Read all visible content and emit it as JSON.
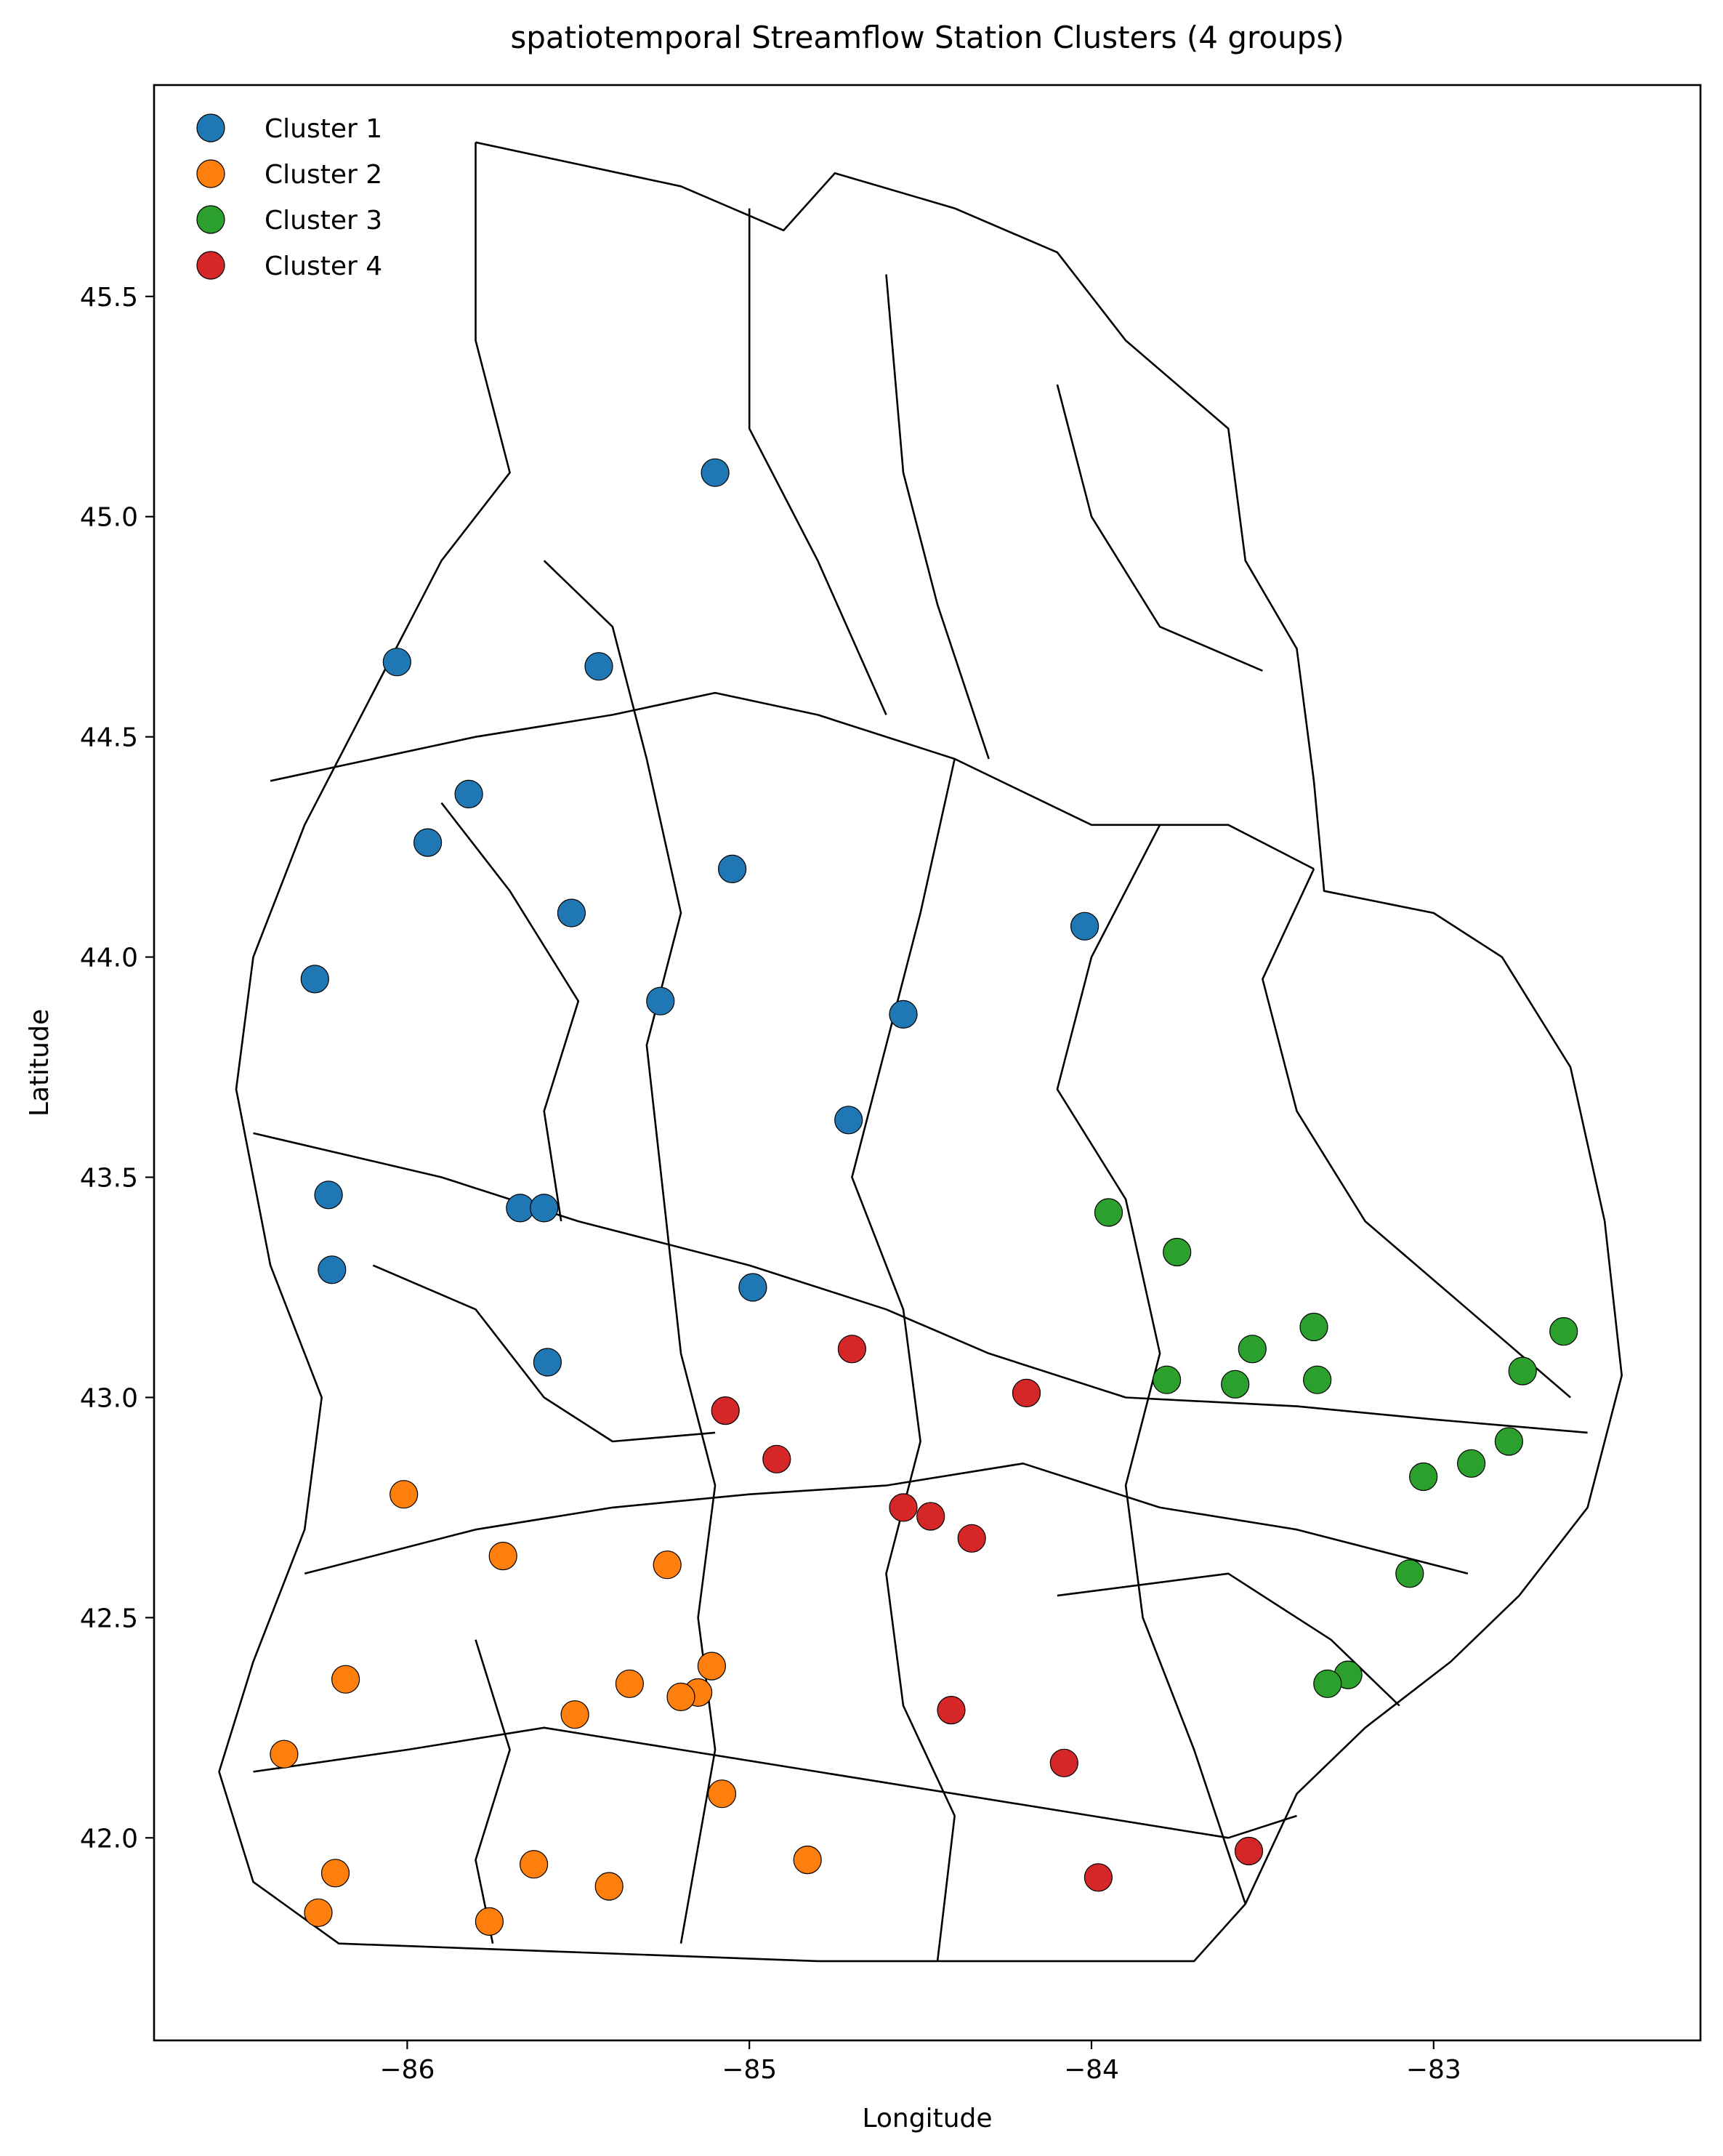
{
  "chart_data": {
    "type": "scatter",
    "title": "spatiotemporal Streamflow Station Clusters (4 groups)",
    "xlabel": "Longitude",
    "ylabel": "Latitude",
    "xlim": [
      -86.74,
      -82.22
    ],
    "ylim": [
      41.54,
      45.98
    ],
    "xticks": [
      -86,
      -85,
      -84,
      -83
    ],
    "xtick_labels": [
      "−86",
      "−85",
      "−84",
      "−83"
    ],
    "yticks": [
      42.0,
      42.5,
      43.0,
      43.5,
      44.0,
      44.5,
      45.0,
      45.5
    ],
    "ytick_labels": [
      "42.0",
      "42.5",
      "43.0",
      "43.5",
      "44.0",
      "44.5",
      "45.0",
      "45.5"
    ],
    "grid": false,
    "legend_position": "top-left",
    "series": [
      {
        "name": "Cluster 1",
        "color": "#1f77b4",
        "points": [
          [
            -85.1,
            45.1
          ],
          [
            -86.03,
            44.67
          ],
          [
            -85.44,
            44.66
          ],
          [
            -85.82,
            44.37
          ],
          [
            -85.94,
            44.26
          ],
          [
            -85.05,
            44.2
          ],
          [
            -85.52,
            44.1
          ],
          [
            -84.02,
            44.07
          ],
          [
            -86.27,
            43.95
          ],
          [
            -85.26,
            43.9
          ],
          [
            -84.55,
            43.87
          ],
          [
            -84.71,
            43.63
          ],
          [
            -86.23,
            43.46
          ],
          [
            -85.67,
            43.43
          ],
          [
            -85.6,
            43.43
          ],
          [
            -86.22,
            43.29
          ],
          [
            -84.99,
            43.25
          ],
          [
            -85.59,
            43.08
          ]
        ]
      },
      {
        "name": "Cluster 2",
        "color": "#ff7f0e",
        "points": [
          [
            -86.01,
            42.78
          ],
          [
            -85.72,
            42.64
          ],
          [
            -85.24,
            42.62
          ],
          [
            -86.18,
            42.36
          ],
          [
            -85.35,
            42.35
          ],
          [
            -85.11,
            42.39
          ],
          [
            -85.15,
            42.33
          ],
          [
            -85.2,
            42.32
          ],
          [
            -85.51,
            42.28
          ],
          [
            -86.36,
            42.19
          ],
          [
            -85.08,
            42.1
          ],
          [
            -84.83,
            41.95
          ],
          [
            -86.21,
            41.92
          ],
          [
            -85.63,
            41.94
          ],
          [
            -85.41,
            41.89
          ],
          [
            -86.26,
            41.83
          ],
          [
            -85.76,
            41.81
          ]
        ]
      },
      {
        "name": "Cluster 3",
        "color": "#2ca02c",
        "points": [
          [
            -83.95,
            43.42
          ],
          [
            -83.75,
            43.33
          ],
          [
            -83.35,
            43.16
          ],
          [
            -83.53,
            43.11
          ],
          [
            -83.78,
            43.04
          ],
          [
            -83.58,
            43.03
          ],
          [
            -83.34,
            43.04
          ],
          [
            -82.62,
            43.15
          ],
          [
            -82.74,
            43.06
          ],
          [
            -82.78,
            42.9
          ],
          [
            -82.89,
            42.85
          ],
          [
            -83.03,
            42.82
          ],
          [
            -83.07,
            42.6
          ],
          [
            -83.25,
            42.37
          ],
          [
            -83.31,
            42.35
          ]
        ]
      },
      {
        "name": "Cluster 4",
        "color": "#d62728",
        "points": [
          [
            -84.7,
            43.11
          ],
          [
            -85.07,
            42.97
          ],
          [
            -84.19,
            43.01
          ],
          [
            -84.92,
            42.86
          ],
          [
            -84.55,
            42.75
          ],
          [
            -84.47,
            42.73
          ],
          [
            -84.35,
            42.68
          ],
          [
            -84.41,
            42.29
          ],
          [
            -84.08,
            42.17
          ],
          [
            -83.98,
            41.91
          ],
          [
            -83.54,
            41.97
          ]
        ]
      }
    ],
    "basin_outlines": [
      [
        [
          -85.8,
          45.85
        ],
        [
          -85.2,
          45.75
        ],
        [
          -84.9,
          45.65
        ],
        [
          -84.75,
          45.78
        ],
        [
          -84.4,
          45.7
        ],
        [
          -84.1,
          45.6
        ],
        [
          -83.9,
          45.4
        ],
        [
          -83.6,
          45.2
        ],
        [
          -83.55,
          44.9
        ],
        [
          -83.4,
          44.7
        ],
        [
          -83.35,
          44.4
        ],
        [
          -83.32,
          44.15
        ],
        [
          -83.0,
          44.1
        ],
        [
          -82.8,
          44.0
        ],
        [
          -82.6,
          43.75
        ],
        [
          -82.5,
          43.4
        ],
        [
          -82.45,
          43.05
        ],
        [
          -82.55,
          42.75
        ],
        [
          -82.75,
          42.55
        ],
        [
          -82.95,
          42.4
        ],
        [
          -83.2,
          42.25
        ],
        [
          -83.4,
          42.1
        ],
        [
          -83.55,
          41.85
        ],
        [
          -83.7,
          41.72
        ],
        [
          -84.8,
          41.72
        ],
        [
          -86.2,
          41.76
        ],
        [
          -86.45,
          41.9
        ],
        [
          -86.55,
          42.15
        ],
        [
          -86.45,
          42.4
        ],
        [
          -86.3,
          42.7
        ],
        [
          -86.25,
          43.0
        ],
        [
          -86.4,
          43.3
        ],
        [
          -86.5,
          43.7
        ],
        [
          -86.45,
          44.0
        ],
        [
          -86.3,
          44.3
        ],
        [
          -86.1,
          44.6
        ],
        [
          -85.9,
          44.9
        ],
        [
          -85.7,
          45.1
        ],
        [
          -85.8,
          45.4
        ],
        [
          -85.8,
          45.85
        ]
      ],
      [
        [
          -86.4,
          44.4
        ],
        [
          -85.8,
          44.5
        ],
        [
          -85.4,
          44.55
        ],
        [
          -85.1,
          44.6
        ],
        [
          -84.8,
          44.55
        ],
        [
          -84.4,
          44.45
        ],
        [
          -84.0,
          44.3
        ],
        [
          -83.6,
          44.3
        ],
        [
          -83.35,
          44.2
        ]
      ],
      [
        [
          -86.45,
          43.6
        ],
        [
          -85.9,
          43.5
        ],
        [
          -85.5,
          43.4
        ],
        [
          -85.0,
          43.3
        ],
        [
          -84.6,
          43.2
        ],
        [
          -84.3,
          43.1
        ],
        [
          -83.9,
          43.0
        ],
        [
          -83.4,
          42.98
        ],
        [
          -83.0,
          42.95
        ],
        [
          -82.55,
          42.92
        ]
      ],
      [
        [
          -86.3,
          42.6
        ],
        [
          -85.8,
          42.7
        ],
        [
          -85.4,
          42.75
        ],
        [
          -85.0,
          42.78
        ],
        [
          -84.6,
          42.8
        ],
        [
          -84.2,
          42.85
        ],
        [
          -83.8,
          42.75
        ],
        [
          -83.4,
          42.7
        ],
        [
          -82.9,
          42.6
        ]
      ],
      [
        [
          -86.45,
          42.15
        ],
        [
          -86.0,
          42.2
        ],
        [
          -85.6,
          42.25
        ],
        [
          -85.2,
          42.2
        ],
        [
          -84.8,
          42.15
        ],
        [
          -84.4,
          42.1
        ],
        [
          -84.0,
          42.05
        ],
        [
          -83.6,
          42.0
        ],
        [
          -83.4,
          42.05
        ]
      ],
      [
        [
          -85.0,
          45.7
        ],
        [
          -85.0,
          45.2
        ],
        [
          -84.8,
          44.9
        ],
        [
          -84.6,
          44.55
        ]
      ],
      [
        [
          -84.6,
          45.55
        ],
        [
          -84.55,
          45.1
        ],
        [
          -84.45,
          44.8
        ],
        [
          -84.3,
          44.45
        ]
      ],
      [
        [
          -84.1,
          45.3
        ],
        [
          -84.0,
          45.0
        ],
        [
          -83.8,
          44.75
        ],
        [
          -83.5,
          44.65
        ]
      ],
      [
        [
          -85.6,
          44.9
        ],
        [
          -85.4,
          44.75
        ],
        [
          -85.3,
          44.45
        ],
        [
          -85.2,
          44.1
        ],
        [
          -85.3,
          43.8
        ],
        [
          -85.25,
          43.45
        ],
        [
          -85.2,
          43.1
        ],
        [
          -85.1,
          42.8
        ],
        [
          -85.15,
          42.5
        ],
        [
          -85.1,
          42.2
        ],
        [
          -85.2,
          41.76
        ]
      ],
      [
        [
          -84.4,
          44.45
        ],
        [
          -84.5,
          44.1
        ],
        [
          -84.6,
          43.8
        ],
        [
          -84.7,
          43.5
        ],
        [
          -84.55,
          43.2
        ],
        [
          -84.5,
          42.9
        ],
        [
          -84.6,
          42.6
        ],
        [
          -84.55,
          42.3
        ],
        [
          -84.4,
          42.05
        ],
        [
          -84.45,
          41.72
        ]
      ],
      [
        [
          -83.8,
          44.3
        ],
        [
          -84.0,
          44.0
        ],
        [
          -84.1,
          43.7
        ],
        [
          -83.9,
          43.45
        ],
        [
          -83.8,
          43.1
        ],
        [
          -83.9,
          42.8
        ],
        [
          -83.85,
          42.5
        ],
        [
          -83.7,
          42.2
        ],
        [
          -83.55,
          41.85
        ]
      ],
      [
        [
          -83.35,
          44.2
        ],
        [
          -83.5,
          43.95
        ],
        [
          -83.4,
          43.65
        ],
        [
          -83.2,
          43.4
        ],
        [
          -82.9,
          43.2
        ],
        [
          -82.6,
          43.0
        ]
      ],
      [
        [
          -85.9,
          44.35
        ],
        [
          -85.7,
          44.15
        ],
        [
          -85.5,
          43.9
        ],
        [
          -85.6,
          43.65
        ],
        [
          -85.55,
          43.4
        ]
      ],
      [
        [
          -86.1,
          43.3
        ],
        [
          -85.8,
          43.2
        ],
        [
          -85.6,
          43.0
        ],
        [
          -85.4,
          42.9
        ],
        [
          -85.1,
          42.92
        ]
      ],
      [
        [
          -84.1,
          42.55
        ],
        [
          -83.6,
          42.6
        ],
        [
          -83.3,
          42.45
        ],
        [
          -83.1,
          42.3
        ]
      ],
      [
        [
          -85.8,
          42.45
        ],
        [
          -85.7,
          42.2
        ],
        [
          -85.8,
          41.95
        ],
        [
          -85.75,
          41.76
        ]
      ]
    ]
  }
}
